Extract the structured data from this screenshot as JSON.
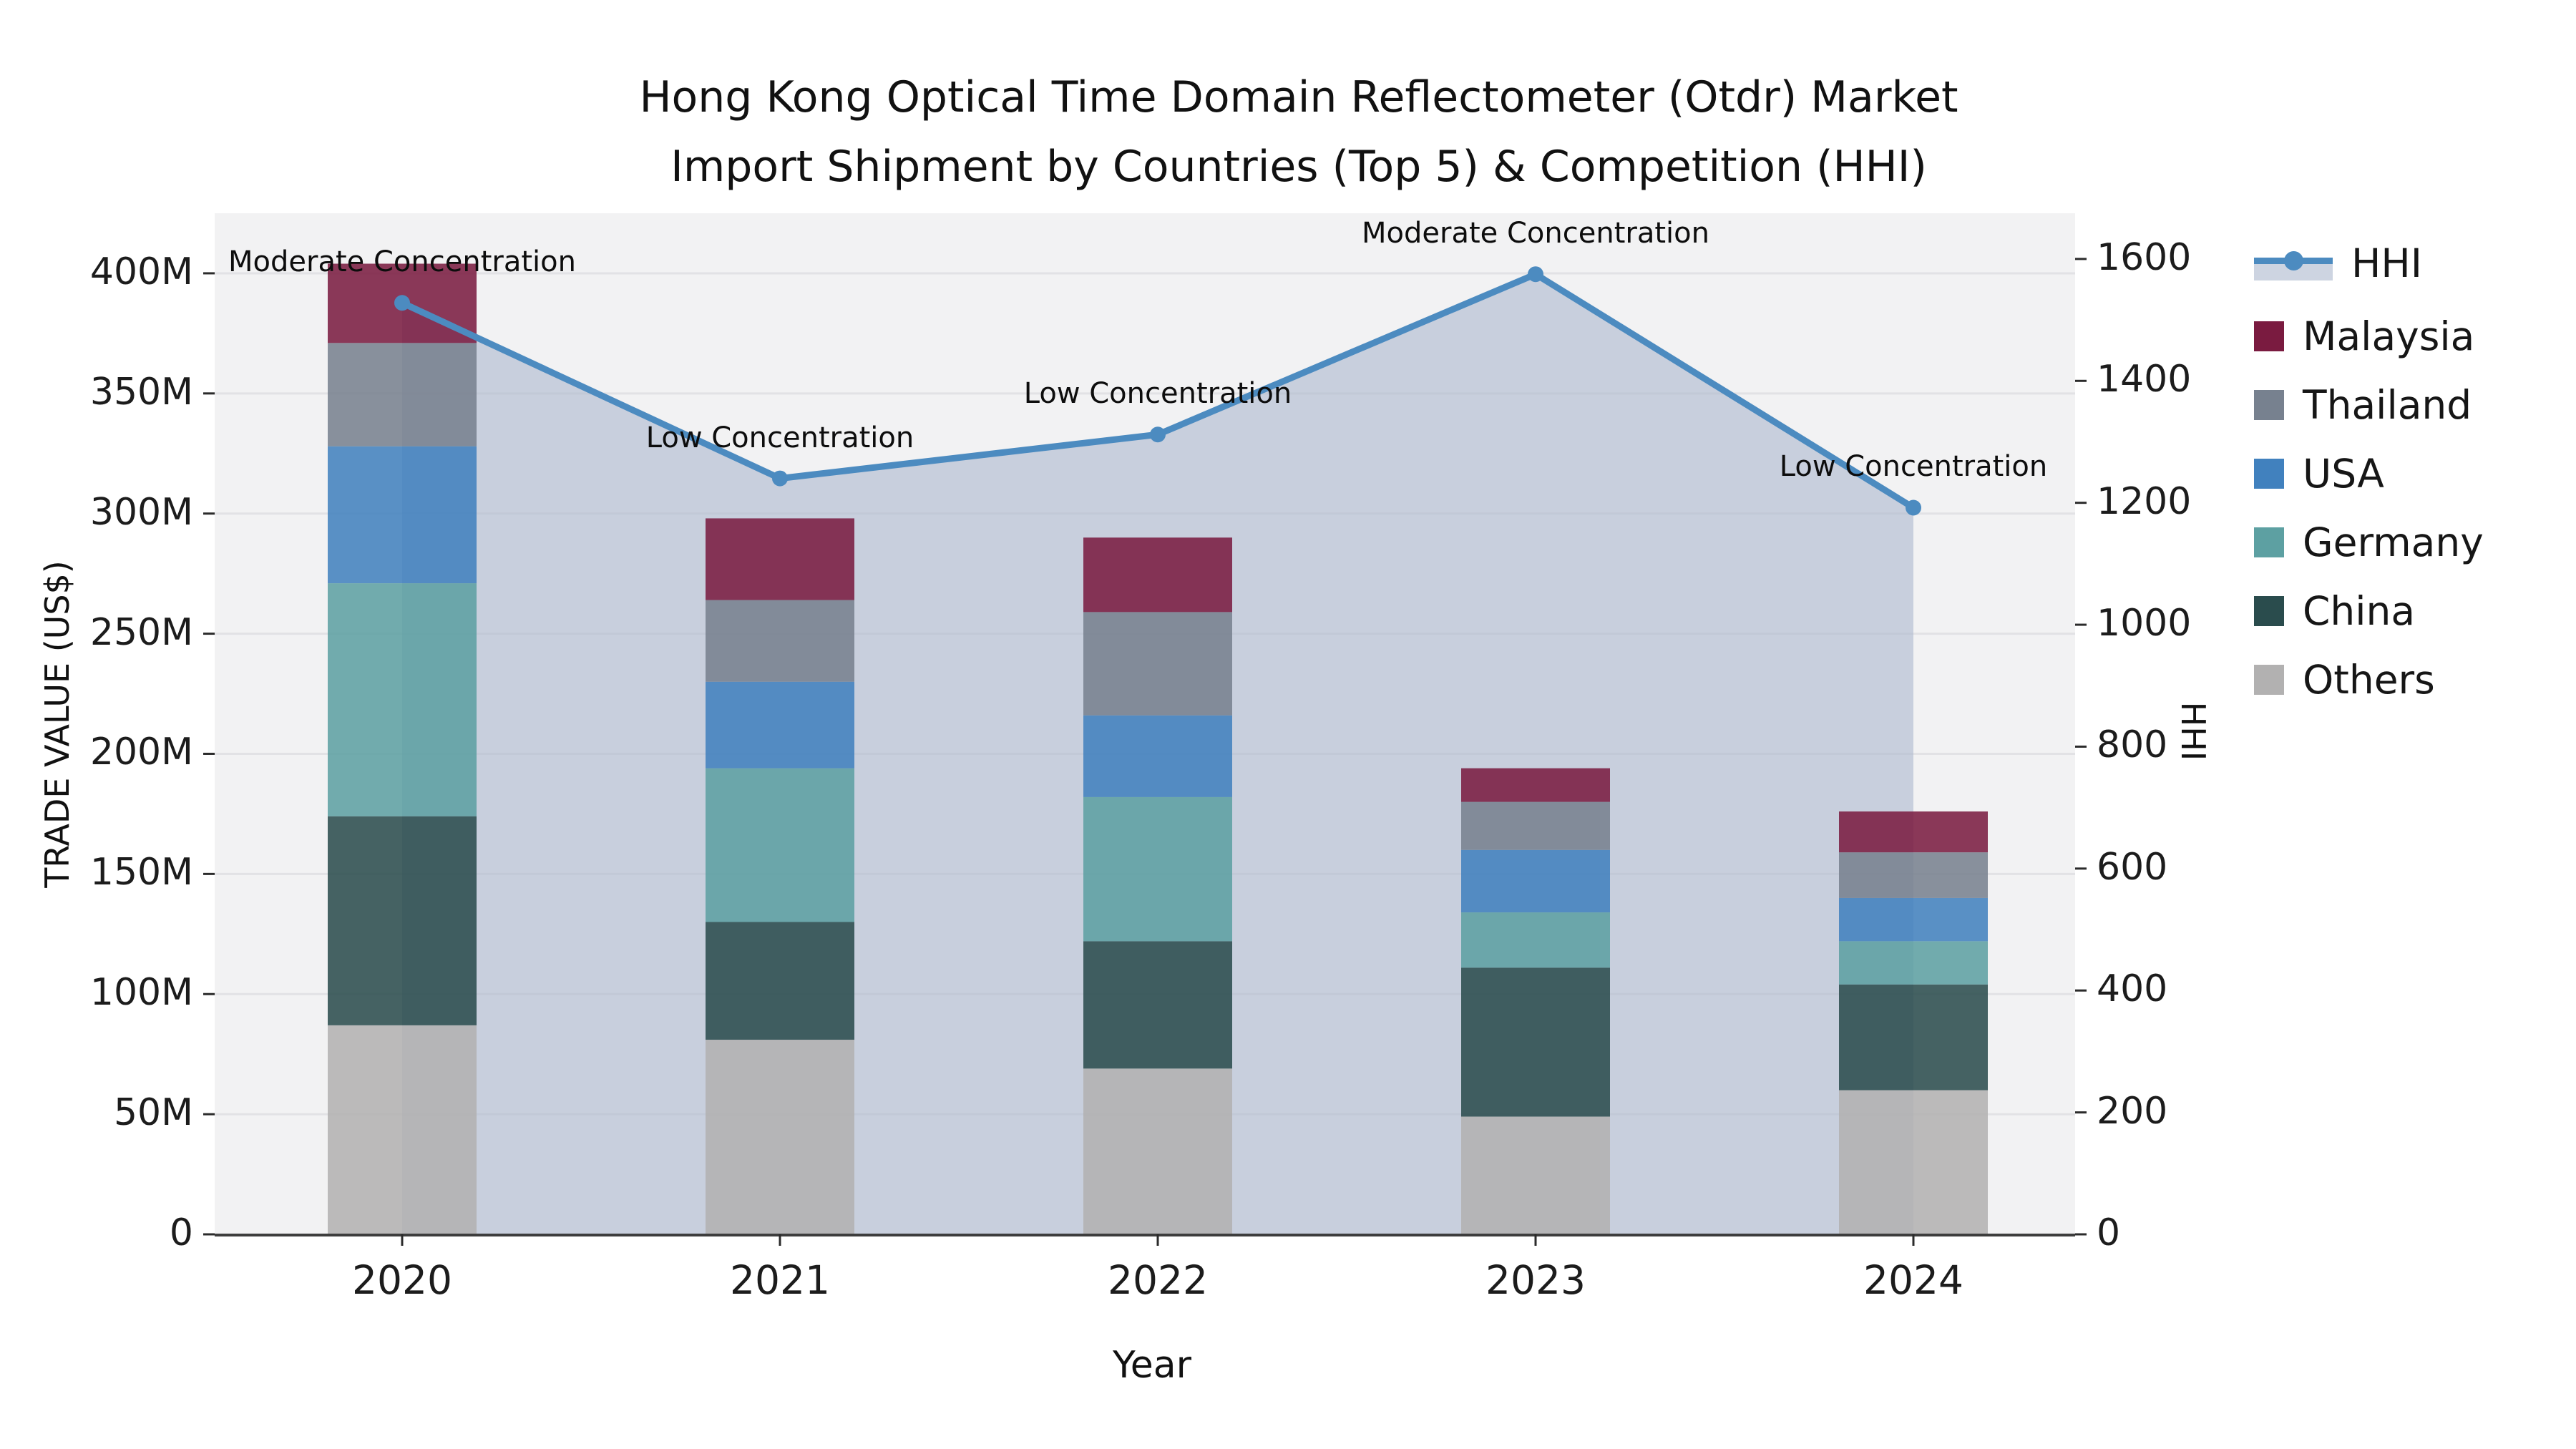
{
  "title": {
    "line1": "Hong Kong Optical Time Domain Reflectometer (Otdr) Market",
    "line2": "Import Shipment by Countries (Top 5) & Competition (HHI)"
  },
  "chart_data": {
    "type": "stacked-bar + line (dual axis)",
    "x_label": "Year",
    "y_left_label": "TRADE VALUE (US$)",
    "y_right_label": "HHI",
    "categories": [
      "2020",
      "2021",
      "2022",
      "2023",
      "2024"
    ],
    "ylim_left": [
      0,
      425
    ],
    "ylim_right": [
      0,
      1675
    ],
    "y_left_ticks": [
      "0",
      "50M",
      "100M",
      "150M",
      "200M",
      "250M",
      "300M",
      "350M",
      "400M"
    ],
    "y_left_tick_values": [
      0,
      50,
      100,
      150,
      200,
      250,
      300,
      350,
      400
    ],
    "y_right_ticks": [
      "0",
      "200",
      "400",
      "600",
      "800",
      "1000",
      "1200",
      "1400",
      "1600"
    ],
    "y_right_tick_values": [
      0,
      200,
      400,
      600,
      800,
      1000,
      1200,
      1400,
      1600
    ],
    "grid": true,
    "legend_position": "right",
    "plot_bg": "#f2f2f3",
    "grid_color": "#e2e2e5",
    "bar_opacity": 0.87,
    "series": [
      {
        "name": "Others",
        "color": "#b2b1b1",
        "values": [
          87,
          81,
          69,
          49,
          60
        ]
      },
      {
        "name": "China",
        "color": "#2a4c4d",
        "values": [
          87,
          49,
          53,
          62,
          44
        ]
      },
      {
        "name": "Germany",
        "color": "#5da0a2",
        "values": [
          97,
          64,
          60,
          23,
          18
        ]
      },
      {
        "name": "USA",
        "color": "#4181be",
        "values": [
          57,
          36,
          34,
          26,
          18
        ]
      },
      {
        "name": "Thailand",
        "color": "#77818f",
        "values": [
          43,
          34,
          43,
          20,
          19
        ]
      },
      {
        "name": "Malaysia",
        "color": "#7a1b40",
        "values": [
          33,
          34,
          31,
          14,
          17
        ]
      }
    ],
    "stack_totals": [
      404,
      298,
      290,
      194,
      176
    ],
    "hhi": {
      "name": "HHI",
      "color": "#4c8bc0",
      "area_color": "rgba(174,186,206,0.62)",
      "values": [
        1528,
        1240,
        1312,
        1575,
        1192
      ]
    },
    "annotations": [
      "Moderate Concentration",
      "Low Concentration",
      "Low Concentration",
      "Moderate Concentration",
      "Low Concentration"
    ]
  }
}
